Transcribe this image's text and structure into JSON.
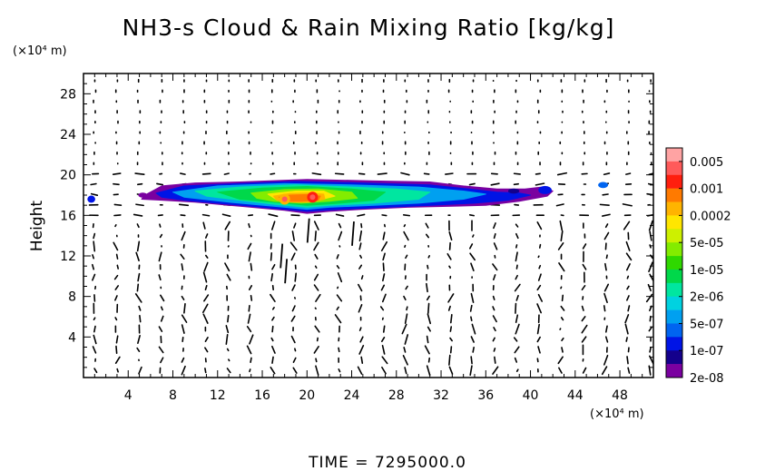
{
  "chart_data": {
    "type": "heatmap",
    "title": "NH3-s Cloud & Rain Mixing Ratio [kg/kg]",
    "ylabel": "Height",
    "xlabel": "",
    "x_unit": "(×10⁴ m)",
    "y_unit": "(×10⁴ m)",
    "xlim": [
      0,
      51
    ],
    "ylim": [
      0,
      30
    ],
    "x_ticks": [
      4,
      8,
      12,
      16,
      20,
      24,
      28,
      32,
      36,
      40,
      44,
      48
    ],
    "y_ticks": [
      4,
      8,
      12,
      16,
      20,
      24,
      28
    ],
    "footer": "TIME  =  7295000.0",
    "colorbar": {
      "labels": [
        "0.005",
        "0.001",
        "0.0002",
        "5e-05",
        "1e-05",
        "2e-06",
        "5e-07",
        "1e-07",
        "2e-08"
      ],
      "colors": [
        "#ffa3a3",
        "#ff5a5a",
        "#ff1e0e",
        "#ff7a00",
        "#ffb400",
        "#ffe600",
        "#cdf000",
        "#83ec00",
        "#2fd800",
        "#00d84a",
        "#00e6a0",
        "#00d2e0",
        "#00a0f0",
        "#0064f0",
        "#0014e6",
        "#14008c",
        "#7a00a0"
      ]
    },
    "cloud_layer": {
      "x_range": [
        0.5,
        48
      ],
      "y_range": [
        16.2,
        19.5
      ],
      "core": [
        {
          "x": 18,
          "y": 17.6,
          "level": "0.0002"
        },
        {
          "x": 20.5,
          "y": 17.8,
          "level": "0.001"
        }
      ]
    }
  }
}
